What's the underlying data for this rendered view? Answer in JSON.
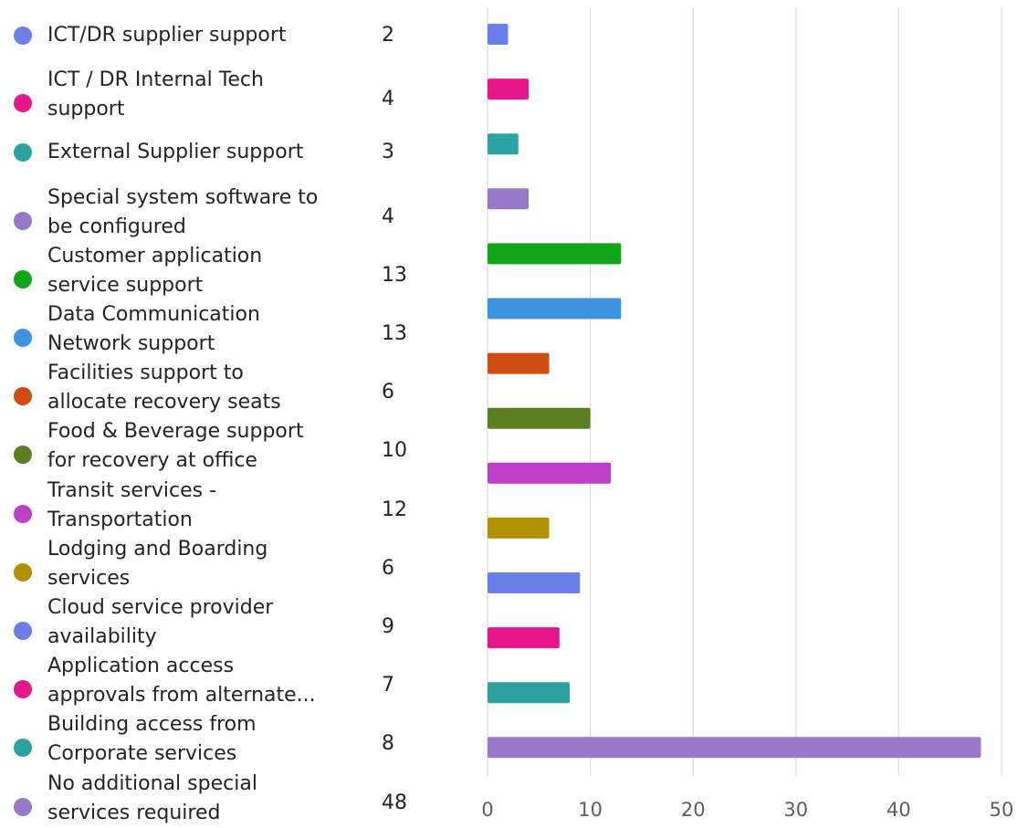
{
  "chart_data": {
    "type": "bar",
    "orientation": "horizontal",
    "categories": [
      "ICT/DR supplier support",
      "ICT / DR Internal Tech support",
      "External Supplier support",
      "Special system software to be configured",
      "Customer application service support",
      "Data Communication Network support",
      "Facilities support to allocate recovery seats",
      "Food & Beverage support for recovery at office",
      "Transit services - Transportation",
      "Lodging and Boarding services",
      "Cloud service provider availability",
      "Application access approvals from alternate...",
      "Building access from Corporate services",
      "No additional special services required"
    ],
    "legend_lines": [
      [
        "ICT/DR supplier support"
      ],
      [
        "ICT / DR Internal Tech",
        "support"
      ],
      [
        "External Supplier support"
      ],
      [
        "Special system software to",
        "be configured"
      ],
      [
        "Customer application",
        "service support"
      ],
      [
        "Data Communication",
        "Network support"
      ],
      [
        "Facilities support to",
        "allocate recovery seats"
      ],
      [
        "Food & Beverage support",
        "for recovery at office"
      ],
      [
        "Transit services -",
        "Transportation"
      ],
      [
        "Lodging and Boarding",
        "services"
      ],
      [
        "Cloud service provider",
        "availability"
      ],
      [
        "Application access",
        "approvals from alternate..."
      ],
      [
        "Building access from",
        "Corporate services"
      ],
      [
        "No additional special",
        "services required"
      ]
    ],
    "values": [
      2,
      4,
      3,
      4,
      13,
      13,
      6,
      10,
      12,
      6,
      9,
      7,
      8,
      48
    ],
    "colors": [
      "#6B7FE8",
      "#E6168C",
      "#2BA3A3",
      "#9878C8",
      "#12A51A",
      "#3D94DE",
      "#CE4C12",
      "#5A7F20",
      "#BC3FC8",
      "#B08F00",
      "#6B7FE8",
      "#E6168C",
      "#2BA3A3",
      "#9878C8"
    ],
    "xlim": [
      0,
      50
    ],
    "xticks": [
      "0",
      "10",
      "20",
      "30",
      "40",
      "50"
    ],
    "grid": true,
    "legend_position": "left"
  }
}
